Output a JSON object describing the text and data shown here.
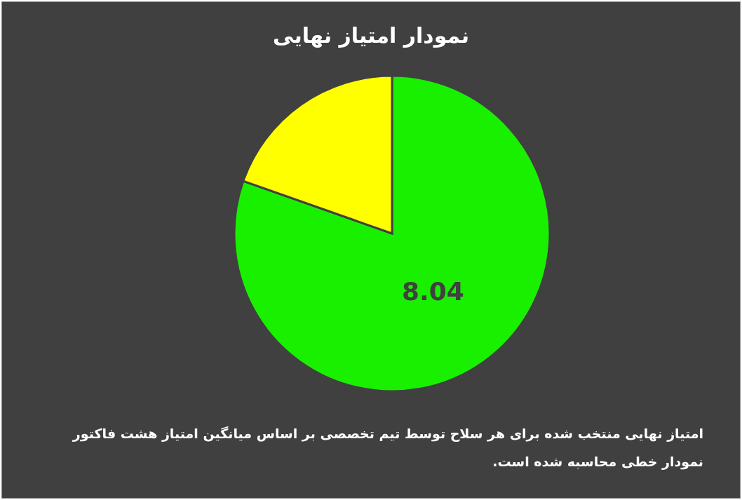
{
  "chart_data": {
    "type": "pie",
    "title": "نمودار امتیاز نهایی",
    "categories": [
      null,
      null
    ],
    "values": [
      8.04,
      1.96
    ],
    "colors": [
      "#19f000",
      "#ffff00"
    ],
    "value_labels": [
      "8.04",
      null
    ],
    "annotations": [
      "امتیاز نهایی منتخب شده برای هر سلاح توسط تیم تخصصی بر اساس میانگین امتیاز هشت فاکتور نمودار خطی محاسبه شده است."
    ]
  }
}
